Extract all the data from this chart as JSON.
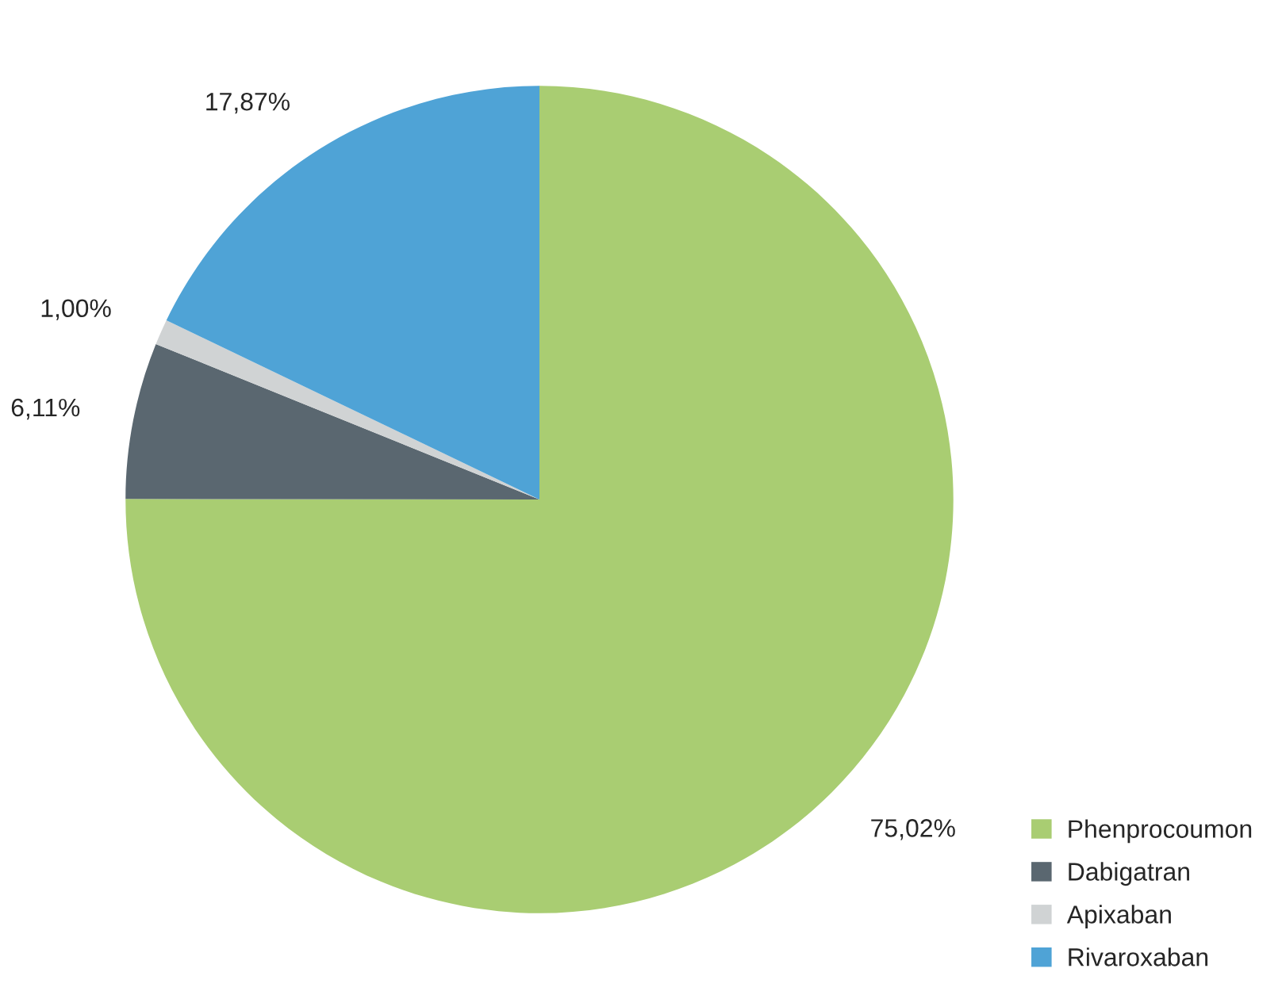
{
  "chart_data": {
    "type": "pie",
    "categories": [
      "Phenprocoumon",
      "Dabigatran",
      "Apixaban",
      "Rivaroxaban"
    ],
    "values": [
      75.02,
      6.11,
      1.0,
      17.87
    ],
    "value_labels": [
      "75,02%",
      "6,11%",
      "1,00%",
      "17,87%"
    ],
    "colors": [
      "#a9cd72",
      "#5a6770",
      "#d0d3d4",
      "#4fa3d6"
    ],
    "legend": "bottom right"
  }
}
